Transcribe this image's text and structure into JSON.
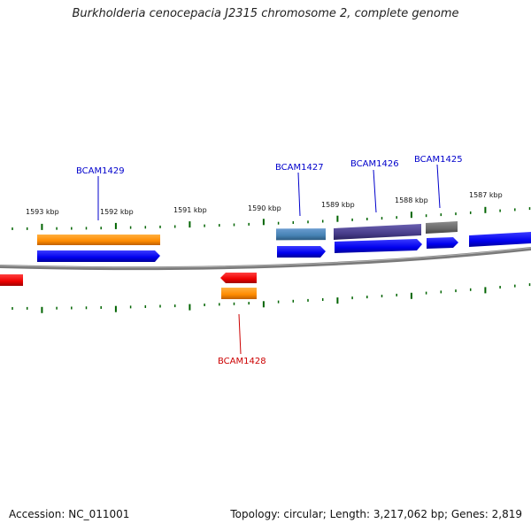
{
  "header": {
    "title": "Burkholderia cenocepacia J2315 chromosome 2, complete genome"
  },
  "footer": {
    "accession": "Accession: NC_011001",
    "topology": "Topology: circular; Length: 3,217,062 bp; Genes: 2,819"
  },
  "scale": {
    "labels": [
      {
        "text": "1593 kbp"
      },
      {
        "text": "1592 kbp"
      },
      {
        "text": "1591 kbp"
      },
      {
        "text": "1590 kbp"
      },
      {
        "text": "1589 kbp"
      },
      {
        "text": "1588 kbp"
      },
      {
        "text": "1587 kbp"
      }
    ]
  },
  "genes": [
    {
      "name": "BCAM1429",
      "strand": "forward",
      "color": "#0000cc"
    },
    {
      "name": "BCAM1427",
      "strand": "forward",
      "color": "#0000cc"
    },
    {
      "name": "BCAM1426",
      "strand": "forward",
      "color": "#0000cc"
    },
    {
      "name": "BCAM1425",
      "strand": "forward",
      "color": "#0000cc"
    },
    {
      "name": "BCAM1428",
      "strand": "reverse",
      "color": "#cc0000"
    }
  ],
  "colors": {
    "cds_forward": "#0000ff",
    "cds_reverse": "#ff0000",
    "feature_orange": "#ff8c00",
    "feature_steelblue": "#4682b4",
    "feature_purple": "#483d8b",
    "feature_gray": "#696969",
    "backbone": "#808080",
    "ticks": "#006400"
  }
}
